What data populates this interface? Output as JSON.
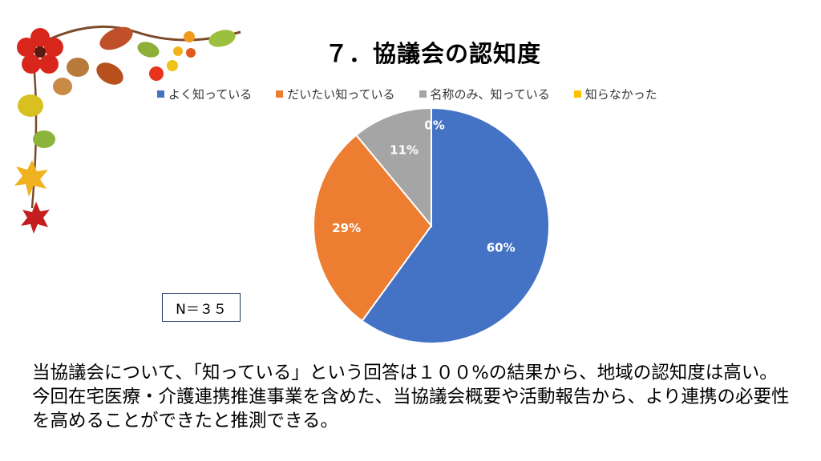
{
  "title": "７．協議会の認知度",
  "sample_size": "N＝３５",
  "summary": "当協議会について、「知っている」という回答は１００%の結果から、地域の認知度は高い。今回在宅医療・介護連携推進事業を含めた、当協議会概要や活動報告から、より連携の必要性を高めることができたと推測できる。",
  "chart_data": {
    "type": "pie",
    "title": "７．協議会の認知度",
    "legend_position": "top",
    "slices": [
      {
        "label": "よく知っている",
        "value": 60,
        "display": "60%",
        "color": "#4472c4"
      },
      {
        "label": "だいたい知っている",
        "value": 29,
        "display": "29%",
        "color": "#ed7d31"
      },
      {
        "label": "名称のみ、知っている",
        "value": 11,
        "display": "11%",
        "color": "#a5a5a5"
      },
      {
        "label": "知らなかった",
        "value": 0,
        "display": "0%",
        "color": "#ffc000"
      }
    ]
  }
}
